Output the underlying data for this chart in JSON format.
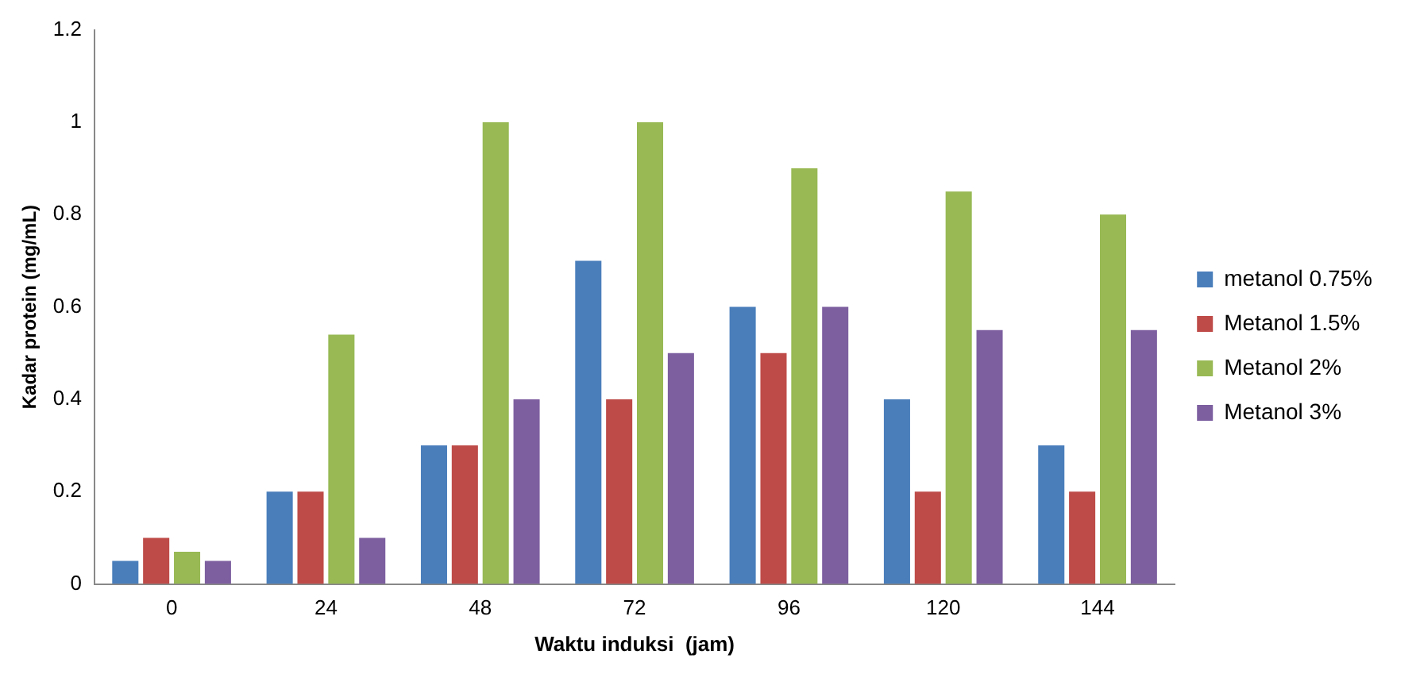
{
  "chart_data": {
    "type": "bar",
    "xlabel": "Waktu induksi  (jam)",
    "ylabel": "Kadar protein (mg/mL)",
    "categories": [
      "0",
      "24",
      "48",
      "72",
      "96",
      "120",
      "144"
    ],
    "series": [
      {
        "name": "metanol 0.75%",
        "color": "#4a7ebb",
        "values": [
          0.05,
          0.2,
          0.3,
          0.7,
          0.6,
          0.4,
          0.3
        ]
      },
      {
        "name": "Metanol 1.5%",
        "color": "#be4b48",
        "values": [
          0.1,
          0.2,
          0.3,
          0.4,
          0.5,
          0.2,
          0.2
        ]
      },
      {
        "name": "Metanol 2%",
        "color": "#98b954",
        "values": [
          0.07,
          0.54,
          1.0,
          1.0,
          0.9,
          0.85,
          0.8
        ]
      },
      {
        "name": "Metanol 3%",
        "color": "#7d5fa0",
        "values": [
          0.05,
          0.1,
          0.4,
          0.5,
          0.6,
          0.55,
          0.55
        ]
      }
    ],
    "ylim": [
      0,
      1.2
    ],
    "yticks": [
      0,
      0.2,
      0.4,
      0.6,
      0.8,
      1,
      1.2
    ],
    "grid": false,
    "legend": "right"
  }
}
